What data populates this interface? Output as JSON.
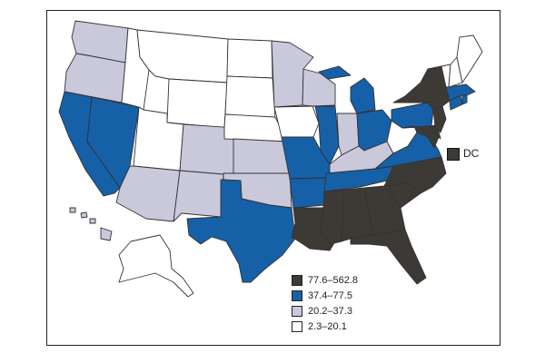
{
  "colors": {
    "c4": "#3d3a36",
    "c3": "#1660a8",
    "c2": "#c9c9db",
    "c1": "#ffffff"
  },
  "dc": {
    "label": "DC",
    "class": "c4"
  },
  "legend": [
    {
      "label": "77.6–562.8",
      "class": "c4"
    },
    {
      "label": "37.4–77.5",
      "class": "c3"
    },
    {
      "label": "20.2–37.3",
      "class": "c2"
    },
    {
      "label": "2.3–20.1",
      "class": "c1"
    }
  ],
  "states": {
    "WA": "c2",
    "OR": "c2",
    "CA": "c3",
    "NV": "c3",
    "ID": "c1",
    "MT": "c1",
    "WY": "c1",
    "UT": "c1",
    "AZ": "c2",
    "CO": "c2",
    "NM": "c2",
    "ND": "c1",
    "SD": "c1",
    "NE": "c1",
    "KS": "c2",
    "OK": "c2",
    "TX": "c3",
    "MN": "c2",
    "IA": "c1",
    "MO": "c3",
    "AR": "c3",
    "LA": "c4",
    "WI": "c2",
    "IL": "c3",
    "MI": "c3",
    "IN": "c2",
    "OH": "c3",
    "KY": "c2",
    "TN": "c3",
    "MS": "c4",
    "AL": "c4",
    "GA": "c4",
    "FL": "c4",
    "SC": "c4",
    "NC": "c4",
    "VA": "c3",
    "WV": "c1",
    "PA": "c3",
    "NY": "c4",
    "MD": "c4",
    "DE": "c4",
    "NJ": "c4",
    "CT": "c3",
    "RI": "c3",
    "MA": "c3",
    "VT": "c1",
    "NH": "c1",
    "ME": "c1",
    "AK": "c1",
    "HI": "c2"
  }
}
